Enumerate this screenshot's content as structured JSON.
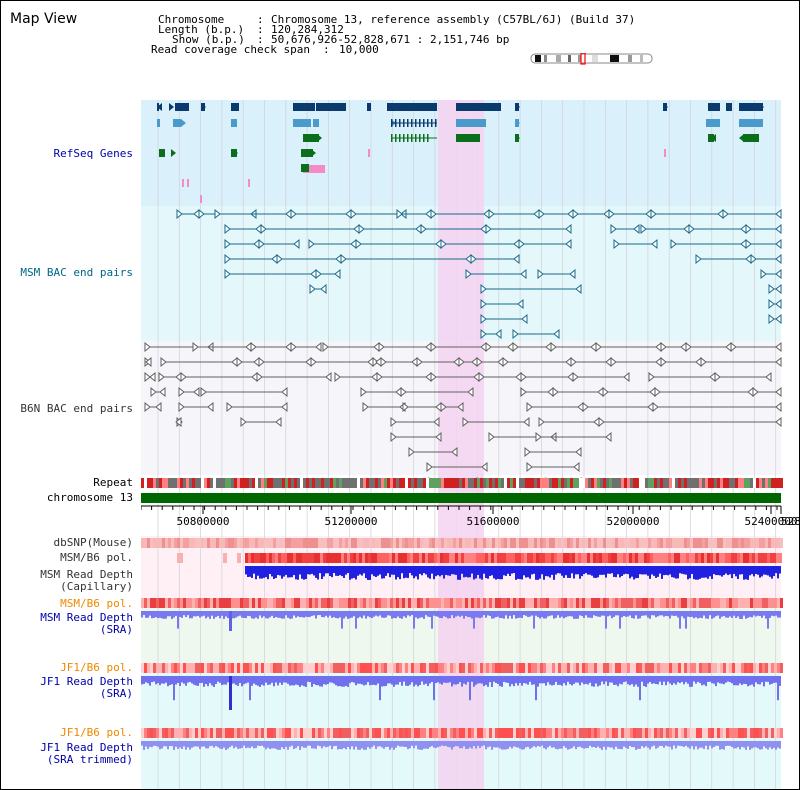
{
  "view_title": "Map View",
  "header": {
    "chromosome_label": "Chromosome",
    "chromosome_value": "Chromosome 13, reference assembly (C57BL/6J) (Build 37)",
    "length_label": "Length (b.p.)",
    "length_value": "120,284,312",
    "show_label": "Show (b.p.)",
    "show_value": "50,676,926-52,828,671 : 2,151,746 bp",
    "coverage_label": "Read coverage check span",
    "coverage_value": "10,000"
  },
  "tracks": {
    "refseq": "RefSeq Genes",
    "msm_bac": "MSM BAC end pairs",
    "b6n_bac": "B6N BAC end pairs",
    "repeat": "Repeat",
    "chromosome": "chromosome 13",
    "dbsnp": "dbSNP(Mouse)",
    "msm_b6_pol": "MSM/B6 pol.",
    "msm_read_depth_cap": "MSM Read Depth\n(Capillary)",
    "msm_b6_pol_2": "MSM/B6 pol.",
    "msm_read_depth_sra": "MSM Read Depth\n(SRA)",
    "jf1_b6_pol": "JF1/B6 pol.",
    "jf1_read_depth_sra": "JF1 Read Depth\n(SRA)",
    "jf1_b6_pol_2": "JF1/B6 pol.",
    "jf1_read_depth_trim": "JF1 Read Depth\n(SRA trimmed)"
  },
  "axis": {
    "ticks": [
      "50800000",
      "51200000",
      "51600000",
      "52000000",
      "52400000",
      "5280"
    ]
  },
  "colors": {
    "refseq_bg": "#daf0fa",
    "msm_bg": "#e4f7fa",
    "highlight": "#f5d2f0",
    "label_blue": "#0000aa",
    "label_teal": "#006688",
    "label_orange": "#ee8800",
    "label_dark": "#333333",
    "chromosome_bar": "#006600"
  }
}
